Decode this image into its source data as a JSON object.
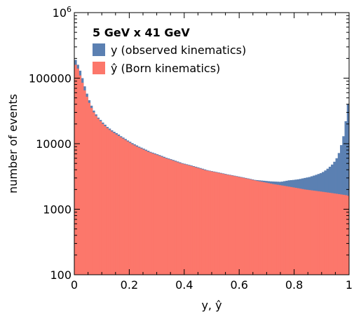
{
  "chart_data": {
    "type": "bar",
    "xlabel": "y, ŷ",
    "ylabel": "number of events",
    "xlim": [
      0,
      1
    ],
    "ylim": [
      100,
      1000000
    ],
    "yscale": "log",
    "x_ticks": [
      "0",
      "0.2",
      "0.4",
      "0.6",
      "0.8",
      "1"
    ],
    "y_ticks": [
      "100",
      "1000",
      "10000",
      "100000",
      "10^6"
    ],
    "legend_title": "5 GeV x 41 GeV",
    "legend_position": "top-left",
    "series": [
      {
        "name": "y (observed kinematics)",
        "color": "#5b80b2",
        "values": [
          190000,
          160000,
          130000,
          100000,
          75000,
          58000,
          46000,
          38000,
          32000,
          28000,
          25000,
          23000,
          21000,
          19500,
          18000,
          17000,
          16000,
          15200,
          14500,
          13800,
          13000,
          12400,
          11800,
          11200,
          10700,
          10200,
          9800,
          9400,
          9000,
          8700,
          8400,
          8100,
          7800,
          7500,
          7300,
          7100,
          6900,
          6700,
          6500,
          6300,
          6100,
          5950,
          5800,
          5650,
          5500,
          5350,
          5200,
          5050,
          4950,
          4850,
          4750,
          4650,
          4550,
          4450,
          4350,
          4250,
          4150,
          4050,
          3950,
          3880,
          3820,
          3760,
          3700,
          3640,
          3580,
          3520,
          3460,
          3400,
          3350,
          3300,
          3250,
          3200,
          3150,
          3100,
          3050,
          3000,
          2950,
          2900,
          2850,
          2800,
          2780,
          2760,
          2740,
          2720,
          2700,
          2680,
          2660,
          2650,
          2640,
          2630,
          2620,
          2640,
          2680,
          2720,
          2760,
          2780,
          2800,
          2830,
          2860,
          2900,
          2950,
          3000,
          3050,
          3100,
          3180,
          3260,
          3350,
          3450,
          3550,
          3700,
          3900,
          4150,
          4450,
          4800,
          5300,
          6000,
          7200,
          9500,
          13000,
          22000,
          40000
        ]
      },
      {
        "name": "ŷ (Born kinematics)",
        "color": "#fc776b",
        "values": [
          160000,
          140000,
          110000,
          85000,
          65000,
          52000,
          42000,
          35000,
          30000,
          26500,
          24000,
          22000,
          20000,
          18500,
          17200,
          16200,
          15300,
          14500,
          13800,
          13100,
          12500,
          11900,
          11300,
          10800,
          10300,
          9800,
          9400,
          9000,
          8700,
          8400,
          8100,
          7800,
          7500,
          7300,
          7100,
          6900,
          6700,
          6500,
          6300,
          6100,
          5950,
          5800,
          5650,
          5500,
          5350,
          5200,
          5050,
          4950,
          4850,
          4750,
          4650,
          4550,
          4450,
          4350,
          4250,
          4150,
          4050,
          3950,
          3880,
          3820,
          3760,
          3700,
          3640,
          3580,
          3520,
          3460,
          3400,
          3350,
          3300,
          3250,
          3200,
          3150,
          3100,
          3050,
          3000,
          2950,
          2900,
          2850,
          2800,
          2750,
          2700,
          2660,
          2620,
          2580,
          2540,
          2500,
          2460,
          2420,
          2390,
          2360,
          2330,
          2300,
          2270,
          2240,
          2210,
          2180,
          2150,
          2120,
          2090,
          2060,
          2030,
          2000,
          1980,
          1960,
          1940,
          1920,
          1900,
          1880,
          1860,
          1840,
          1820,
          1800,
          1780,
          1760,
          1740,
          1720,
          1700,
          1680,
          1660,
          1640,
          1600
        ]
      }
    ]
  }
}
